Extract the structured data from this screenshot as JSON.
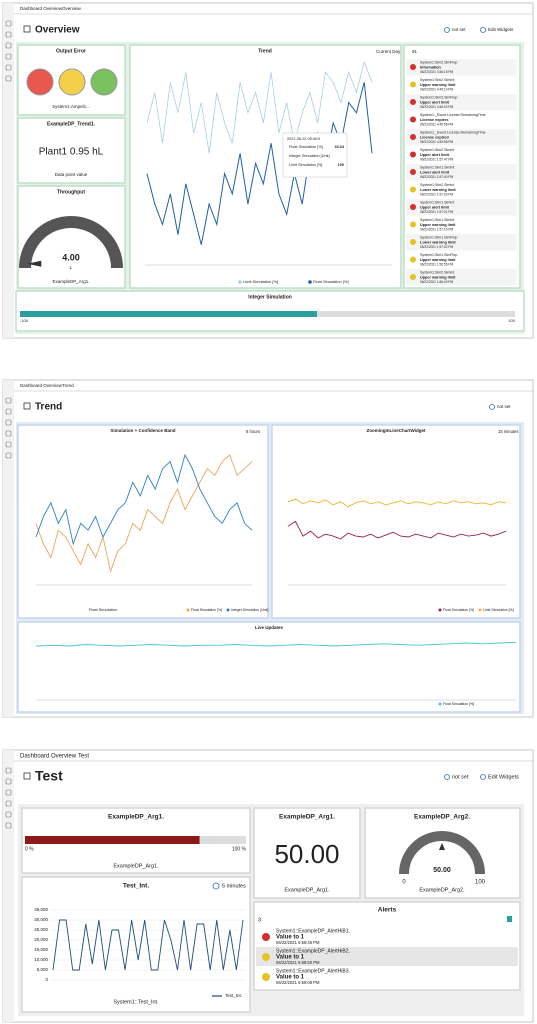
{
  "screens": [
    {
      "breadcrumb": [
        "Dashboard Overview",
        "Overview"
      ],
      "title": "Overview",
      "actions": [
        "not set",
        "Edit Widgets"
      ],
      "output_error": {
        "title": "Output Error",
        "caption": "System1:Ampel1...",
        "colors": [
          "#e8584f",
          "#f3cf4a",
          "#79c25f"
        ]
      },
      "trend1": {
        "title": "ExampleDP_Trend1.",
        "value": "Plant1 0.95 hL",
        "caption": "Data point value"
      },
      "throughput": {
        "title": "Throughput",
        "value": 4,
        "value_label": "4.00",
        "unit": "L",
        "caption": "ExampleDP_Arg1.",
        "lim": [
          0,
          100
        ]
      },
      "trend": {
        "title": "Trend",
        "range": "Current Day",
        "ylim": [
          0,
          100
        ],
        "series": [
          {
            "name": "Limit Simulation [%]",
            "color": "#a9cfe0",
            "values": [
              70,
              85,
              60,
              90,
              75,
              95,
              65,
              80,
              55,
              85,
              70,
              60,
              90,
              75,
              85,
              70,
              95,
              65,
              80,
              60,
              75,
              85,
              70,
              95,
              90,
              80,
              95,
              85,
              100,
              90
            ]
          },
          {
            "name": "Float Simulation [%]",
            "color": "#1f5fa8",
            "values": [
              45,
              30,
              20,
              35,
              15,
              40,
              25,
              10,
              30,
              20,
              45,
              35,
              55,
              30,
              50,
              40,
              60,
              35,
              25,
              45,
              30,
              55,
              65,
              50,
              70,
              60,
              80,
              75,
              90,
              55
            ]
          }
        ],
        "tooltip": {
          "time": "2021-06-22 05:40:0",
          "rows": [
            {
              "name": "Float Simulation [%]",
              "value": 33.04
            },
            {
              "name": "Integer Simulation [Unit]"
            },
            {
              "name": "Limit Simulation [%]",
              "value": 100
            }
          ]
        }
      },
      "alerts": {
        "count": "91",
        "items": [
          {
            "source": "System1:Sim2.SimFlop",
            "message": "Information",
            "time": "06/22/2021 4:46:15 PM",
            "color": "#d32f2f"
          },
          {
            "source": "System1:Sim2.SimInt",
            "message": "Upper warning limit",
            "time": "06/22/2021 4:46:10 PM",
            "color": "#e6c229"
          },
          {
            "source": "System1:Sim2.SimFlop",
            "message": "Upper alert limit",
            "time": "06/22/2021 4:46:02 PM",
            "color": "#d32f2f"
          },
          {
            "source": "System1:_Event.License.RemainingTime",
            "message": "License expires",
            "time": "06/22/2021 4:45:58 PM",
            "color": "#d32f2f"
          },
          {
            "source": "System1:_Event.License.RemainingTime",
            "message": "License expired",
            "time": "06/22/2021 4:45:58 PM",
            "color": "#d32f2f"
          },
          {
            "source": "System1:Sim2.SimInt",
            "message": "Upper alert limit",
            "time": "06/22/2021 1:57:47 PM",
            "color": "#d32f2f"
          },
          {
            "source": "System1:Sim1.SimInt",
            "message": "Lower alert limit",
            "time": "06/22/2021 1:57:40 PM",
            "color": "#d32f2f"
          },
          {
            "source": "System1:Sim2.SimInt",
            "message": "Lower warning limit",
            "time": "06/22/2021 1:57:33 PM",
            "color": "#e6c229"
          },
          {
            "source": "System1:Sim1.SimInt",
            "message": "Upper alert limit",
            "time": "06/22/2021 1:57:21 PM",
            "color": "#d32f2f"
          },
          {
            "source": "System1:Sim1.SimInt",
            "message": "Upper warning limit",
            "time": "06/22/2021 1:57:15 PM",
            "color": "#e6c229"
          },
          {
            "source": "System1:Sim1.SimFlop",
            "message": "Lower warning limit",
            "time": "06/22/2021 1:57:02 PM",
            "color": "#e6c229"
          },
          {
            "source": "System1:Sim1.SimFlop",
            "message": "Upper warning limit",
            "time": "06/22/2021 1:56:55 PM",
            "color": "#e6c229"
          },
          {
            "source": "System1:Sim2.SimInt",
            "message": "Upper warning limit",
            "time": "06/22/2021 1:56:40 PM",
            "color": "#e6c229"
          }
        ]
      },
      "integer_simulation": {
        "title": "Integer Simulation",
        "value": 20,
        "lim": [
          -100,
          100
        ],
        "ticks": [
          -100,
          100
        ]
      }
    },
    {
      "breadcrumb": [
        "Dashboard Overview",
        "Trend"
      ],
      "title": "Trend",
      "actions": [
        "not set"
      ],
      "band": {
        "title": "Simulation + Confidence Band",
        "range": "8 hours",
        "xlabel": "Float Simulation",
        "ylim": [
          0,
          100
        ],
        "series": [
          {
            "name": "Float Simulation [%]",
            "color": "#f0a35e",
            "values": [
              45,
              30,
              20,
              40,
              35,
              25,
              15,
              30,
              20,
              35,
              10,
              25,
              30,
              45,
              40,
              55,
              50,
              45,
              60,
              70,
              55,
              65,
              75,
              85,
              80,
              90,
              95,
              80,
              85,
              90
            ]
          },
          {
            "name": "Integer Simulation [Unit]",
            "color": "#2f7fc1",
            "values": [
              35,
              50,
              60,
              45,
              55,
              30,
              45,
              40,
              50,
              35,
              45,
              55,
              60,
              75,
              65,
              80,
              70,
              85,
              90,
              75,
              95,
              85,
              70,
              60,
              50,
              45,
              55,
              60,
              45,
              40
            ]
          }
        ]
      },
      "zoom": {
        "title": "ZoomingInLineChartWidget",
        "range": "15 minutes",
        "ylim": [
          0,
          140
        ],
        "series": [
          {
            "name": "Float Simulation [%]",
            "color": "#9c1d55",
            "values": [
              60,
              65,
              50,
              55,
              48,
              52,
              50,
              47,
              53,
              50,
              49,
              52,
              48,
              51,
              54,
              50,
              49,
              52,
              50,
              48,
              53,
              51,
              49,
              52,
              50,
              51,
              53,
              50,
              52,
              55
            ]
          },
          {
            "name": "Limit Simulation [%]",
            "color": "#f0b429",
            "values": [
              85,
              88,
              83,
              86,
              84,
              87,
              82,
              85,
              80,
              84,
              86,
              83,
              85,
              82,
              84,
              86,
              83,
              85,
              84,
              82,
              85,
              83,
              86,
              84,
              85,
              83,
              84,
              82,
              85,
              84
            ]
          }
        ]
      },
      "live": {
        "title": "Live Updates",
        "ylim": [
          0,
          80
        ],
        "series": [
          {
            "name": "Float Simulation [%]",
            "color": "#4cc3d9",
            "values": [
              72,
              73,
              72,
              74,
              73,
              72,
              73,
              74,
              73,
              72,
              73,
              73,
              74,
              73,
              72,
              73,
              74,
              73,
              72,
              73,
              74,
              75,
              74,
              73,
              74,
              75,
              76,
              75,
              76,
              77
            ]
          }
        ]
      }
    },
    {
      "breadcrumb": [
        "Dashboard Overview",
        "Test"
      ],
      "title": "Test",
      "actions": [
        "not set",
        "Edit Widgets"
      ],
      "progress": {
        "title": "ExampleDP_Arg1.",
        "value": 79,
        "lim": [
          0,
          100
        ],
        "ticks": [
          {
            "value": 0,
            "label": "0 %"
          },
          {
            "value": 100,
            "label": "100 %"
          }
        ],
        "caption": "ExampleDP_Arg1.",
        "color": "#8b1a1a"
      },
      "value_widget": {
        "title": "ExampleDP_Arg1.",
        "value": "50.00",
        "caption": "ExampleDP_Arg1."
      },
      "gauge": {
        "title": "ExampleDP_Arg2.",
        "value": 50,
        "value_label": "50.00",
        "lim": [
          0,
          100
        ],
        "ticks": [
          0,
          100
        ],
        "caption": "ExampleDP_Arg2."
      },
      "test_int": {
        "title": "Test_Int.",
        "range": "5 minutes",
        "xlabel": "System1::Test_Int.",
        "ylim": [
          0,
          35000
        ],
        "yticks": [
          0,
          {
            "value": 5000,
            "label": "5,000"
          },
          {
            "value": 10000,
            "label": "10,000"
          },
          {
            "value": 15000,
            "label": "15,000"
          },
          {
            "value": 20000,
            "label": "20,000"
          },
          {
            "value": 25000,
            "label": "25,000"
          },
          {
            "value": 30000,
            "label": "30,000"
          },
          {
            "value": 35000,
            "label": "35,000"
          }
        ],
        "series": [
          {
            "name": "Test_Int.",
            "color": "#1f4e79",
            "values": [
              5000,
              30000,
              30000,
              5000,
              5000,
              28000,
              8000,
              30000,
              5000,
              25000,
              25000,
              5000,
              30000,
              10000,
              30000,
              5000,
              5000,
              30000,
              20000,
              5000,
              30000,
              5000,
              28000,
              28000,
              5000,
              30000,
              5000,
              25000,
              5000,
              30000
            ]
          }
        ]
      },
      "alerts": {
        "title": "Alerts",
        "count": "3",
        "items": [
          {
            "source": "System1::ExampleDP_AlertHiB1.",
            "message": "Value to 1",
            "time": "06/22/2021 6:58:45 PM",
            "color": "#d32f2f"
          },
          {
            "source": "System1::ExampleDP_AlertHiB2.",
            "message": "Value to 1",
            "time": "06/22/2021 6:58:50 PM",
            "color": "#e6c229"
          },
          {
            "source": "System1::ExampleDP_AlertHiB3.",
            "message": "Value to 1",
            "time": "06/22/2021 6:59:08 PM",
            "color": "#e6c229"
          }
        ]
      }
    }
  ]
}
